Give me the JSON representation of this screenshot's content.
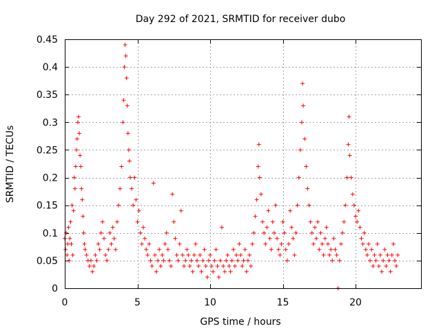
{
  "chart_data": {
    "type": "scatter",
    "title": "Day 292 of 2021, SRMTID for receiver dubo",
    "xlabel": "GPS time / hours",
    "ylabel": "SRMTID / TECUs",
    "xlim": [
      0,
      24.5
    ],
    "ylim": [
      0,
      0.45
    ],
    "x_ticks": [
      0,
      5,
      10,
      15,
      20
    ],
    "x_tick_labels": [
      "0",
      "5",
      "10",
      "15",
      "20"
    ],
    "y_ticks": [
      0,
      0.05,
      0.1,
      0.15,
      0.2,
      0.25,
      0.3,
      0.35,
      0.4,
      0.45
    ],
    "y_tick_labels": [
      "0",
      "0.05",
      "0.1",
      "0.15",
      "0.2",
      "0.25",
      "0.3",
      "0.35",
      "0.4",
      "0.45"
    ],
    "grid": true,
    "marker": "plus",
    "color": "#ff0000",
    "series": [
      {
        "name": "SRMTID",
        "points": [
          [
            0.0,
            0.09
          ],
          [
            0.05,
            0.07
          ],
          [
            0.1,
            0.1
          ],
          [
            0.15,
            0.06
          ],
          [
            0.2,
            0.08
          ],
          [
            0.25,
            0.11
          ],
          [
            0.3,
            0.05
          ],
          [
            0.35,
            0.09
          ],
          [
            0.4,
            0.12
          ],
          [
            0.45,
            0.08
          ],
          [
            0.5,
            0.15
          ],
          [
            0.55,
            0.06
          ],
          [
            0.6,
            0.14
          ],
          [
            0.65,
            0.2
          ],
          [
            0.7,
            0.18
          ],
          [
            0.75,
            0.22
          ],
          [
            0.8,
            0.25
          ],
          [
            0.85,
            0.27
          ],
          [
            0.9,
            0.3
          ],
          [
            0.95,
            0.31
          ],
          [
            1.0,
            0.28
          ],
          [
            1.05,
            0.24
          ],
          [
            1.1,
            0.22
          ],
          [
            1.15,
            0.18
          ],
          [
            1.2,
            0.16
          ],
          [
            1.25,
            0.13
          ],
          [
            1.3,
            0.1
          ],
          [
            1.35,
            0.08
          ],
          [
            1.4,
            0.07
          ],
          [
            1.5,
            0.06
          ],
          [
            1.6,
            0.05
          ],
          [
            1.7,
            0.04
          ],
          [
            1.8,
            0.05
          ],
          [
            1.9,
            0.03
          ],
          [
            2.0,
            0.04
          ],
          [
            2.1,
            0.06
          ],
          [
            2.2,
            0.05
          ],
          [
            2.3,
            0.08
          ],
          [
            2.4,
            0.07
          ],
          [
            2.5,
            0.1
          ],
          [
            2.6,
            0.12
          ],
          [
            2.7,
            0.09
          ],
          [
            2.8,
            0.06
          ],
          [
            2.9,
            0.05
          ],
          [
            3.0,
            0.07
          ],
          [
            3.1,
            0.1
          ],
          [
            3.2,
            0.08
          ],
          [
            3.3,
            0.11
          ],
          [
            3.4,
            0.09
          ],
          [
            3.5,
            0.07
          ],
          [
            3.6,
            0.12
          ],
          [
            3.7,
            0.15
          ],
          [
            3.8,
            0.18
          ],
          [
            3.9,
            0.22
          ],
          [
            4.0,
            0.3
          ],
          [
            4.05,
            0.34
          ],
          [
            4.1,
            0.4
          ],
          [
            4.15,
            0.44
          ],
          [
            4.2,
            0.42
          ],
          [
            4.25,
            0.38
          ],
          [
            4.3,
            0.33
          ],
          [
            4.35,
            0.28
          ],
          [
            4.4,
            0.25
          ],
          [
            4.45,
            0.23
          ],
          [
            4.5,
            0.2
          ],
          [
            4.6,
            0.18
          ],
          [
            4.7,
            0.15
          ],
          [
            4.8,
            0.2
          ],
          [
            4.9,
            0.16
          ],
          [
            5.0,
            0.12
          ],
          [
            5.1,
            0.14
          ],
          [
            5.2,
            0.1
          ],
          [
            5.3,
            0.08
          ],
          [
            5.4,
            0.11
          ],
          [
            5.5,
            0.09
          ],
          [
            5.6,
            0.07
          ],
          [
            5.7,
            0.06
          ],
          [
            5.8,
            0.08
          ],
          [
            5.9,
            0.05
          ],
          [
            6.0,
            0.04
          ],
          [
            6.1,
            0.19
          ],
          [
            6.2,
            0.06
          ],
          [
            6.3,
            0.03
          ],
          [
            6.4,
            0.05
          ],
          [
            6.5,
            0.07
          ],
          [
            6.6,
            0.04
          ],
          [
            6.7,
            0.06
          ],
          [
            6.8,
            0.05
          ],
          [
            6.9,
            0.08
          ],
          [
            7.0,
            0.1
          ],
          [
            7.1,
            0.07
          ],
          [
            7.2,
            0.05
          ],
          [
            7.3,
            0.04
          ],
          [
            7.4,
            0.17
          ],
          [
            7.5,
            0.12
          ],
          [
            7.6,
            0.09
          ],
          [
            7.7,
            0.06
          ],
          [
            7.8,
            0.05
          ],
          [
            7.9,
            0.08
          ],
          [
            8.0,
            0.14
          ],
          [
            8.1,
            0.06
          ],
          [
            8.2,
            0.04
          ],
          [
            8.3,
            0.05
          ],
          [
            8.4,
            0.07
          ],
          [
            8.5,
            0.06
          ],
          [
            8.6,
            0.04
          ],
          [
            8.7,
            0.05
          ],
          [
            8.8,
            0.03
          ],
          [
            8.9,
            0.06
          ],
          [
            9.0,
            0.08
          ],
          [
            9.1,
            0.05
          ],
          [
            9.2,
            0.04
          ],
          [
            9.3,
            0.06
          ],
          [
            9.4,
            0.03
          ],
          [
            9.5,
            0.05
          ],
          [
            9.6,
            0.07
          ],
          [
            9.7,
            0.04
          ],
          [
            9.8,
            0.02
          ],
          [
            9.9,
            0.05
          ],
          [
            10.0,
            0.06
          ],
          [
            10.1,
            0.04
          ],
          [
            10.2,
            0.03
          ],
          [
            10.3,
            0.05
          ],
          [
            10.4,
            0.07
          ],
          [
            10.5,
            0.04
          ],
          [
            10.6,
            0.02
          ],
          [
            10.7,
            0.05
          ],
          [
            10.8,
            0.11
          ],
          [
            10.9,
            0.04
          ],
          [
            11.0,
            0.03
          ],
          [
            11.1,
            0.05
          ],
          [
            11.2,
            0.06
          ],
          [
            11.3,
            0.04
          ],
          [
            11.4,
            0.03
          ],
          [
            11.5,
            0.05
          ],
          [
            11.6,
            0.07
          ],
          [
            11.7,
            0.04
          ],
          [
            11.8,
            0.06
          ],
          [
            11.9,
            0.05
          ],
          [
            12.0,
            0.08
          ],
          [
            12.1,
            0.06
          ],
          [
            12.2,
            0.04
          ],
          [
            12.3,
            0.05
          ],
          [
            12.4,
            0.07
          ],
          [
            12.5,
            0.03
          ],
          [
            12.6,
            0.05
          ],
          [
            12.7,
            0.06
          ],
          [
            12.8,
            0.04
          ],
          [
            12.9,
            0.08
          ],
          [
            13.0,
            0.1
          ],
          [
            13.1,
            0.13
          ],
          [
            13.2,
            0.16
          ],
          [
            13.3,
            0.22
          ],
          [
            13.35,
            0.26
          ],
          [
            13.4,
            0.2
          ],
          [
            13.5,
            0.17
          ],
          [
            13.6,
            0.12
          ],
          [
            13.7,
            0.1
          ],
          [
            13.8,
            0.08
          ],
          [
            13.9,
            0.11
          ],
          [
            14.0,
            0.14
          ],
          [
            14.1,
            0.09
          ],
          [
            14.2,
            0.07
          ],
          [
            14.3,
            0.12
          ],
          [
            14.4,
            0.1
          ],
          [
            14.5,
            0.15
          ],
          [
            14.6,
            0.09
          ],
          [
            14.7,
            0.07
          ],
          [
            14.8,
            0.06
          ],
          [
            14.9,
            0.08
          ],
          [
            15.0,
            0.12
          ],
          [
            15.1,
            0.1
          ],
          [
            15.2,
            0.07
          ],
          [
            15.3,
            0.05
          ],
          [
            15.4,
            0.08
          ],
          [
            15.5,
            0.14
          ],
          [
            15.6,
            0.11
          ],
          [
            15.7,
            0.09
          ],
          [
            15.8,
            0.06
          ],
          [
            15.9,
            0.1
          ],
          [
            16.0,
            0.15
          ],
          [
            16.1,
            0.2
          ],
          [
            16.2,
            0.25
          ],
          [
            16.3,
            0.3
          ],
          [
            16.35,
            0.37
          ],
          [
            16.4,
            0.33
          ],
          [
            16.5,
            0.27
          ],
          [
            16.6,
            0.22
          ],
          [
            16.7,
            0.18
          ],
          [
            16.8,
            0.15
          ],
          [
            16.9,
            0.12
          ],
          [
            17.0,
            0.1
          ],
          [
            17.1,
            0.08
          ],
          [
            17.2,
            0.11
          ],
          [
            17.3,
            0.09
          ],
          [
            17.4,
            0.12
          ],
          [
            17.5,
            0.07
          ],
          [
            17.6,
            0.1
          ],
          [
            17.7,
            0.08
          ],
          [
            17.8,
            0.06
          ],
          [
            17.9,
            0.09
          ],
          [
            18.0,
            0.11
          ],
          [
            18.1,
            0.08
          ],
          [
            18.2,
            0.06
          ],
          [
            18.3,
            0.07
          ],
          [
            18.4,
            0.05
          ],
          [
            18.5,
            0.09
          ],
          [
            18.6,
            0.07
          ],
          [
            18.7,
            0.06
          ],
          [
            18.8,
            0.0
          ],
          [
            18.9,
            0.05
          ],
          [
            19.0,
            0.08
          ],
          [
            19.1,
            0.1
          ],
          [
            19.2,
            0.12
          ],
          [
            19.3,
            0.15
          ],
          [
            19.4,
            0.2
          ],
          [
            19.5,
            0.26
          ],
          [
            19.55,
            0.31
          ],
          [
            19.6,
            0.24
          ],
          [
            19.7,
            0.2
          ],
          [
            19.8,
            0.17
          ],
          [
            19.9,
            0.15
          ],
          [
            20.0,
            0.13
          ],
          [
            20.1,
            0.12
          ],
          [
            20.2,
            0.14
          ],
          [
            20.3,
            0.11
          ],
          [
            20.4,
            0.09
          ],
          [
            20.5,
            0.08
          ],
          [
            20.6,
            0.1
          ],
          [
            20.7,
            0.07
          ],
          [
            20.8,
            0.06
          ],
          [
            20.9,
            0.08
          ],
          [
            21.0,
            0.05
          ],
          [
            21.1,
            0.07
          ],
          [
            21.2,
            0.04
          ],
          [
            21.3,
            0.06
          ],
          [
            21.4,
            0.05
          ],
          [
            21.5,
            0.08
          ],
          [
            21.6,
            0.04
          ],
          [
            21.7,
            0.06
          ],
          [
            21.8,
            0.03
          ],
          [
            21.9,
            0.05
          ],
          [
            22.0,
            0.07
          ],
          [
            22.1,
            0.04
          ],
          [
            22.2,
            0.06
          ],
          [
            22.3,
            0.05
          ],
          [
            22.4,
            0.03
          ],
          [
            22.5,
            0.06
          ],
          [
            22.6,
            0.08
          ],
          [
            22.7,
            0.05
          ],
          [
            22.8,
            0.04
          ],
          [
            22.9,
            0.06
          ]
        ]
      }
    ]
  }
}
